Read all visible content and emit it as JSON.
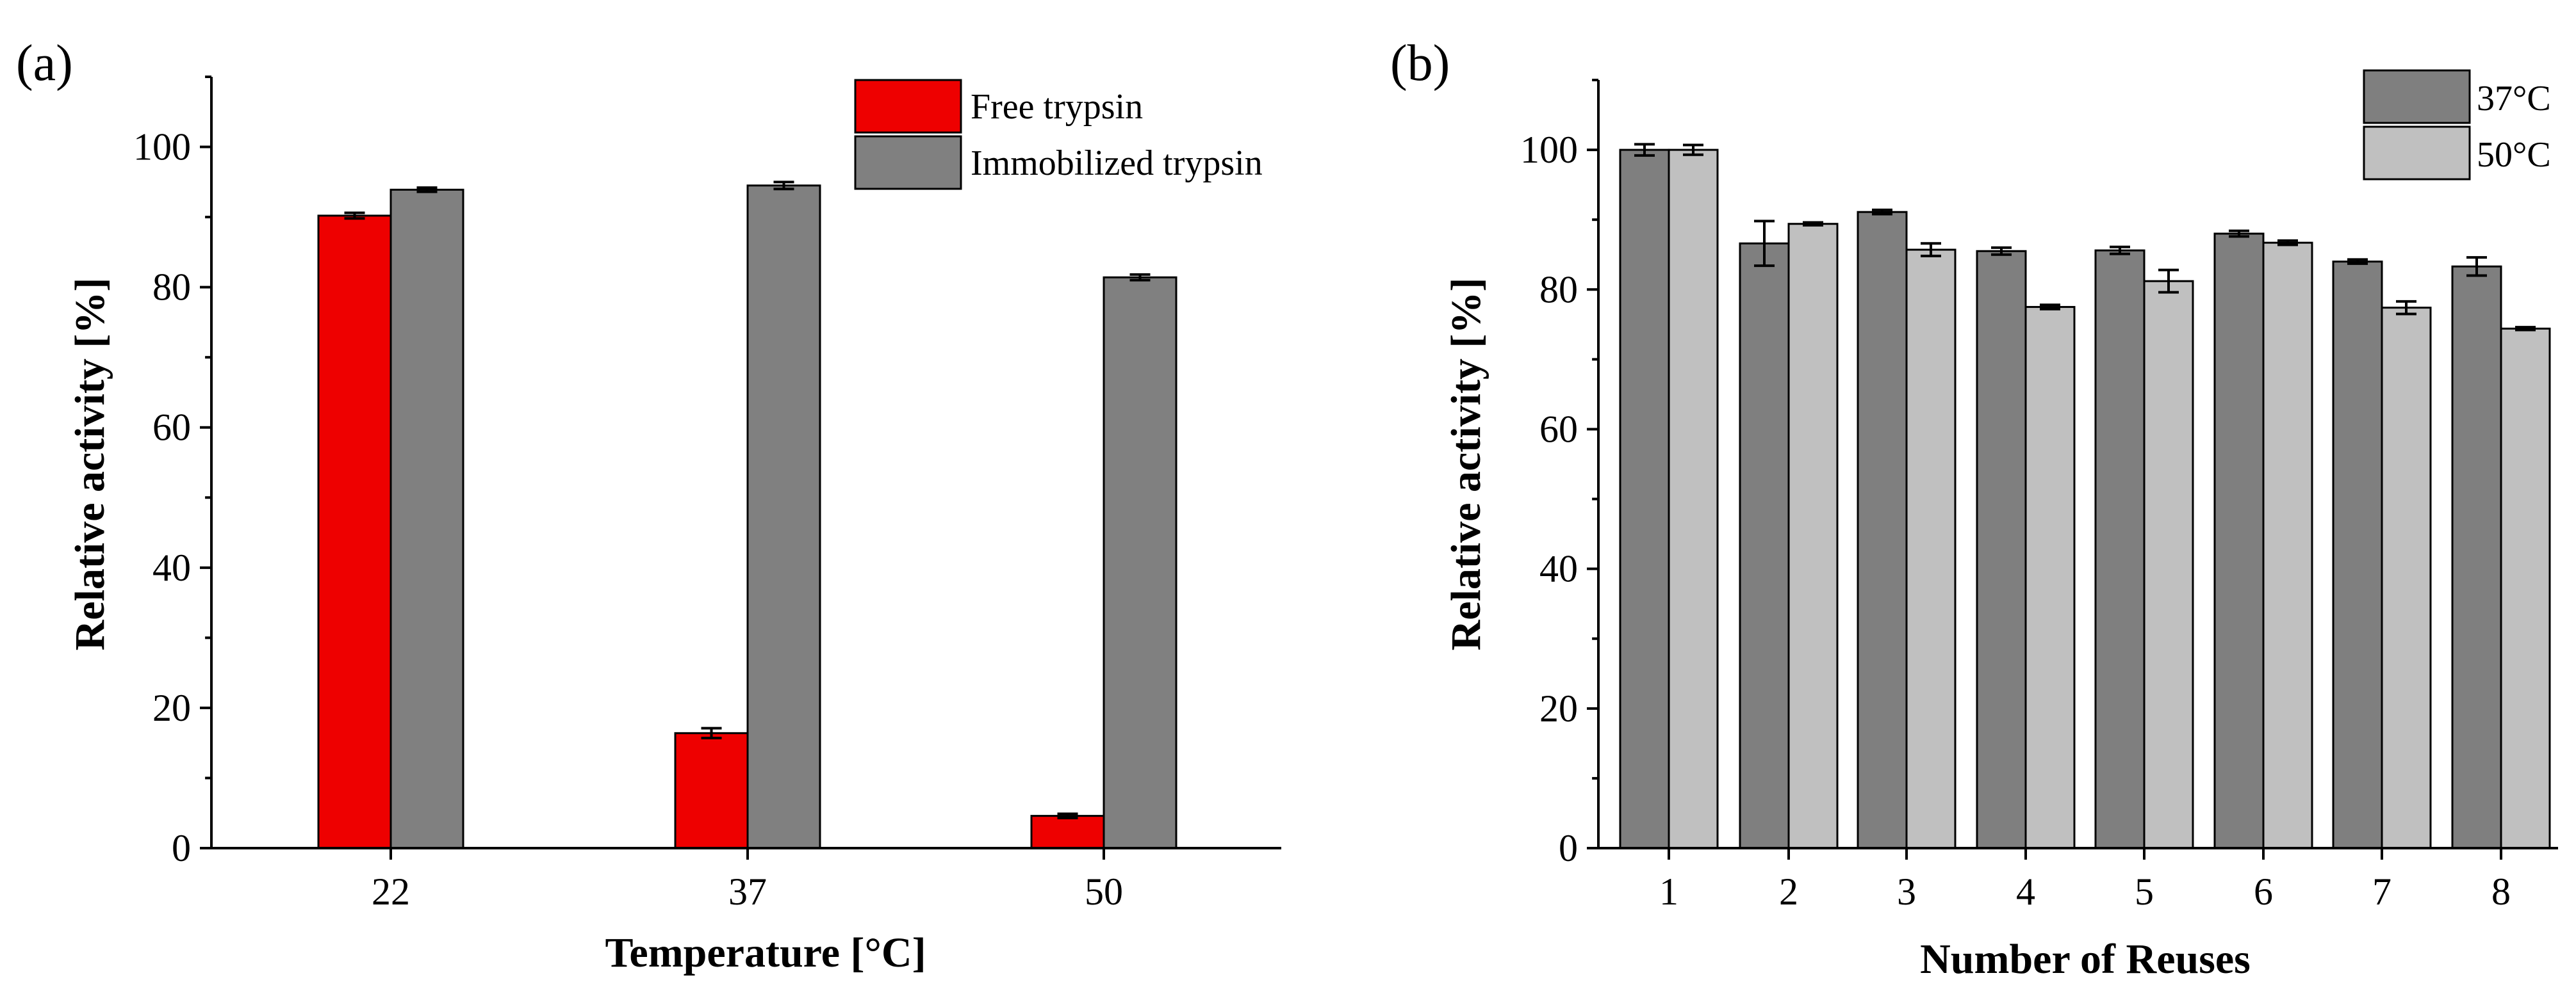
{
  "chart_data": [
    {
      "type": "bar",
      "panel_label": "(a)",
      "title": "",
      "xlabel": "Temperature [°C]",
      "ylabel": "Relative activity [%]",
      "categories": [
        "22",
        "37",
        "50"
      ],
      "ylim": [
        0,
        110
      ],
      "yticks": [
        "0",
        "20",
        "40",
        "60",
        "80",
        "100"
      ],
      "series": [
        {
          "name": "Free trypsin",
          "color": "#ee0000",
          "values": [
            90.2,
            16.4,
            4.6
          ],
          "errors": [
            0.4,
            0.7,
            0.3
          ]
        },
        {
          "name": "Immobilized trypsin",
          "color": "#808080",
          "values": [
            93.9,
            94.5,
            81.4
          ],
          "errors": [
            0.3,
            0.5,
            0.4
          ]
        }
      ],
      "legend_position": "top-right"
    },
    {
      "type": "bar",
      "panel_label": "(b)",
      "title": "",
      "xlabel": "Number of Reuses",
      "ylabel": "Relative activity [%]",
      "categories": [
        "1",
        "2",
        "3",
        "4",
        "5",
        "6",
        "7",
        "8"
      ],
      "ylim": [
        0,
        110
      ],
      "yticks": [
        "0",
        "20",
        "40",
        "60",
        "80",
        "100"
      ],
      "series": [
        {
          "name": "37°C",
          "color": "#7f7f7f",
          "values": [
            100.0,
            86.6,
            91.1,
            85.5,
            85.6,
            88.0,
            84.0,
            83.3
          ],
          "errors": [
            0.8,
            3.2,
            0.3,
            0.5,
            0.5,
            0.4,
            0.3,
            1.3
          ]
        },
        {
          "name": "50°C",
          "color": "#c0c0c0",
          "values": [
            100.0,
            89.4,
            85.7,
            77.5,
            81.2,
            86.7,
            77.4,
            74.4
          ],
          "errors": [
            0.7,
            0.2,
            0.9,
            0.3,
            1.6,
            0.3,
            0.9,
            0.2
          ]
        }
      ],
      "legend_position": "top-right"
    }
  ]
}
